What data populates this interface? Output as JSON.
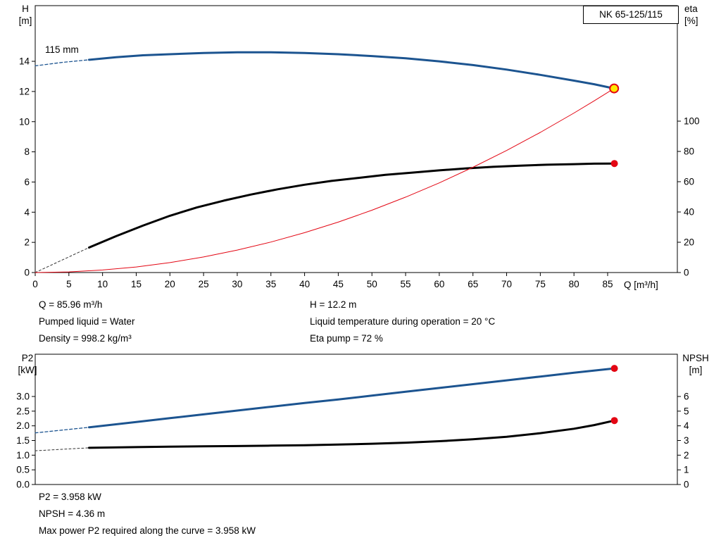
{
  "model_label": "NK 65-125/115",
  "colors": {
    "frame": "#000000",
    "curve_blue": "#1c5490",
    "curve_black": "#000000",
    "curve_red": "#e30613",
    "dot_red": "#e30613",
    "duty_fill": "#ffe600",
    "dash_gray": "#333333"
  },
  "axis_titles": {
    "top_left": [
      "H",
      "[m]"
    ],
    "top_right": [
      "eta",
      "[%]"
    ],
    "top_x": "Q [m³/h]",
    "bottom_left": [
      "P2",
      "[kW]"
    ],
    "bottom_right": [
      "NPSH",
      "[m]"
    ]
  },
  "info": {
    "q": "Q = 85.96 m³/h",
    "pumped_liquid": "Pumped liquid = Water",
    "density": "Density = 998.2 kg/m³",
    "h": "H = 12.2 m",
    "temp": "Liquid temperature during operation = 20 °C",
    "eta_pump": "Eta pump = 72 %",
    "p2": "P2 = 3.958 kW",
    "npsh": "NPSH = 4.36 m",
    "max_power": "Max power P2 required along the curve = 3.958 kW"
  },
  "chart_data": [
    {
      "id": "head-eta-chart",
      "type": "line",
      "impeller_label": "115 mm",
      "x_label": "Q [m³/h]",
      "y_left_label": "H [m]",
      "y_right_label": "eta [%]",
      "grid": false,
      "x_range": [
        0,
        95.35
      ],
      "y_left_range": [
        0,
        17.69
      ],
      "y_right_range": [
        0,
        176.3
      ],
      "x_ticks": [
        [
          0,
          "0"
        ],
        [
          5,
          "5"
        ],
        [
          10,
          "10"
        ],
        [
          15,
          "15"
        ],
        [
          20,
          "20"
        ],
        [
          25,
          "25"
        ],
        [
          30,
          "30"
        ],
        [
          35,
          "35"
        ],
        [
          40,
          "40"
        ],
        [
          45,
          "45"
        ],
        [
          50,
          "50"
        ],
        [
          55,
          "55"
        ],
        [
          60,
          "60"
        ],
        [
          65,
          "65"
        ],
        [
          70,
          "70"
        ],
        [
          75,
          "75"
        ],
        [
          80,
          "80"
        ],
        [
          85,
          "85"
        ]
      ],
      "y_left_ticks": [
        [
          0,
          "0"
        ],
        [
          2,
          "2"
        ],
        [
          4,
          "4"
        ],
        [
          6,
          "6"
        ],
        [
          8,
          "8"
        ],
        [
          10,
          "10"
        ],
        [
          12,
          "12"
        ],
        [
          14,
          "14"
        ]
      ],
      "y_right_ticks": [
        [
          0,
          "0"
        ],
        [
          20,
          "20"
        ],
        [
          40,
          "40"
        ],
        [
          60,
          "60"
        ],
        [
          80,
          "80"
        ],
        [
          100,
          "100"
        ]
      ],
      "series": [
        {
          "name": "head-curve-dashed",
          "axis": "left",
          "color": "#1c5490",
          "width": 1.3,
          "dash": "4,3",
          "points": [
            [
              0,
              13.7
            ],
            [
              4,
              13.93
            ],
            [
              8,
              14.1
            ]
          ]
        },
        {
          "name": "head-curve",
          "axis": "left",
          "color": "#1c5490",
          "width": 3,
          "dash": "",
          "points": [
            [
              8,
              14.1
            ],
            [
              12,
              14.27
            ],
            [
              16,
              14.4
            ],
            [
              20,
              14.47
            ],
            [
              25,
              14.55
            ],
            [
              30,
              14.6
            ],
            [
              35,
              14.6
            ],
            [
              40,
              14.55
            ],
            [
              45,
              14.47
            ],
            [
              50,
              14.35
            ],
            [
              55,
              14.2
            ],
            [
              60,
              14.0
            ],
            [
              65,
              13.75
            ],
            [
              70,
              13.45
            ],
            [
              75,
              13.1
            ],
            [
              80,
              12.72
            ],
            [
              83,
              12.48
            ],
            [
              85.96,
              12.2
            ]
          ]
        },
        {
          "name": "eta-curve-dashed",
          "axis": "right",
          "color": "#333333",
          "width": 1,
          "dash": "3,3",
          "points": [
            [
              0,
              0
            ],
            [
              8,
              16.5
            ]
          ]
        },
        {
          "name": "eta-curve",
          "axis": "right",
          "color": "#000000",
          "width": 3,
          "dash": "",
          "points": [
            [
              8,
              16.5
            ],
            [
              12,
              24
            ],
            [
              16,
              31
            ],
            [
              20,
              37.5
            ],
            [
              24,
              43
            ],
            [
              28,
              47.5
            ],
            [
              32,
              51.5
            ],
            [
              36,
              55
            ],
            [
              40,
              58
            ],
            [
              44,
              60.5
            ],
            [
              48,
              62.5
            ],
            [
              52,
              64.5
            ],
            [
              56,
              66
            ],
            [
              60,
              67.5
            ],
            [
              64,
              68.8
            ],
            [
              68,
              69.8
            ],
            [
              72,
              70.6
            ],
            [
              76,
              71.2
            ],
            [
              80,
              71.6
            ],
            [
              83,
              71.9
            ],
            [
              86,
              72
            ]
          ]
        },
        {
          "name": "system-curve",
          "axis": "left",
          "color": "#e30613",
          "width": 1,
          "dash": "",
          "points": [
            [
              0,
              0
            ],
            [
              5,
              0.04
            ],
            [
              10,
              0.17
            ],
            [
              15,
              0.37
            ],
            [
              20,
              0.66
            ],
            [
              25,
              1.03
            ],
            [
              30,
              1.49
            ],
            [
              35,
              2.02
            ],
            [
              40,
              2.64
            ],
            [
              45,
              3.34
            ],
            [
              50,
              4.13
            ],
            [
              55,
              5.0
            ],
            [
              60,
              5.94
            ],
            [
              65,
              6.98
            ],
            [
              70,
              8.09
            ],
            [
              75,
              9.29
            ],
            [
              80,
              10.57
            ],
            [
              83,
              11.38
            ],
            [
              85.96,
              12.2
            ]
          ]
        }
      ],
      "markers": [
        {
          "name": "duty-point",
          "axis": "left",
          "x": 85.96,
          "y": 12.2,
          "r": 6,
          "fill": "#ffe600",
          "stroke": "#e30613",
          "stroke_width": 2
        },
        {
          "name": "eta-end-point",
          "axis": "right",
          "x": 86,
          "y": 72,
          "r": 5,
          "fill": "#e30613",
          "stroke": "none",
          "stroke_width": 0
        }
      ]
    },
    {
      "id": "p2-npsh-chart",
      "type": "line",
      "x_label": "",
      "y_left_label": "P2 [kW]",
      "y_right_label": "NPSH [m]",
      "grid": false,
      "x_range": [
        0,
        95.35
      ],
      "y_left_range": [
        0,
        4.44
      ],
      "y_right_range": [
        0,
        8.88
      ],
      "x_ticks": [],
      "y_left_ticks": [
        [
          0,
          "0.0"
        ],
        [
          0.5,
          "0.5"
        ],
        [
          1,
          "1.0"
        ],
        [
          1.5,
          "1.5"
        ],
        [
          2,
          "2.0"
        ],
        [
          2.5,
          "2.5"
        ],
        [
          3,
          "3.0"
        ]
      ],
      "y_right_ticks": [
        [
          0,
          "0"
        ],
        [
          1,
          "1"
        ],
        [
          2,
          "2"
        ],
        [
          3,
          "3"
        ],
        [
          4,
          "4"
        ],
        [
          5,
          "5"
        ],
        [
          6,
          "6"
        ]
      ],
      "series": [
        {
          "name": "p2-curve-dashed",
          "axis": "left",
          "color": "#1c5490",
          "width": 1.3,
          "dash": "4,3",
          "points": [
            [
              0,
              1.76
            ],
            [
              8,
              1.95
            ]
          ]
        },
        {
          "name": "p2-curve",
          "axis": "left",
          "color": "#1c5490",
          "width": 3,
          "dash": "",
          "points": [
            [
              8,
              1.95
            ],
            [
              15,
              2.13
            ],
            [
              20,
              2.26
            ],
            [
              25,
              2.39
            ],
            [
              30,
              2.52
            ],
            [
              35,
              2.65
            ],
            [
              40,
              2.78
            ],
            [
              45,
              2.9
            ],
            [
              50,
              3.03
            ],
            [
              55,
              3.16
            ],
            [
              60,
              3.29
            ],
            [
              65,
              3.42
            ],
            [
              70,
              3.55
            ],
            [
              75,
              3.68
            ],
            [
              80,
              3.81
            ],
            [
              86,
              3.958
            ]
          ]
        },
        {
          "name": "npsh-curve-dashed",
          "axis": "right",
          "color": "#333333",
          "width": 1,
          "dash": "3,3",
          "points": [
            [
              0,
              2.3
            ],
            [
              8,
              2.5
            ]
          ]
        },
        {
          "name": "npsh-curve",
          "axis": "right",
          "color": "#000000",
          "width": 3,
          "dash": "",
          "points": [
            [
              8,
              2.5
            ],
            [
              15,
              2.55
            ],
            [
              20,
              2.58
            ],
            [
              25,
              2.6
            ],
            [
              30,
              2.62
            ],
            [
              35,
              2.65
            ],
            [
              40,
              2.68
            ],
            [
              45,
              2.72
            ],
            [
              50,
              2.78
            ],
            [
              55,
              2.85
            ],
            [
              60,
              2.95
            ],
            [
              65,
              3.08
            ],
            [
              70,
              3.25
            ],
            [
              75,
              3.5
            ],
            [
              80,
              3.8
            ],
            [
              83,
              4.05
            ],
            [
              86,
              4.36
            ]
          ]
        }
      ],
      "markers": [
        {
          "name": "p2-end-point",
          "axis": "left",
          "x": 86,
          "y": 3.958,
          "r": 5,
          "fill": "#e30613",
          "stroke": "none",
          "stroke_width": 0
        },
        {
          "name": "npsh-end-point",
          "axis": "right",
          "x": 86,
          "y": 4.36,
          "r": 5,
          "fill": "#e30613",
          "stroke": "none",
          "stroke_width": 0
        }
      ]
    }
  ]
}
